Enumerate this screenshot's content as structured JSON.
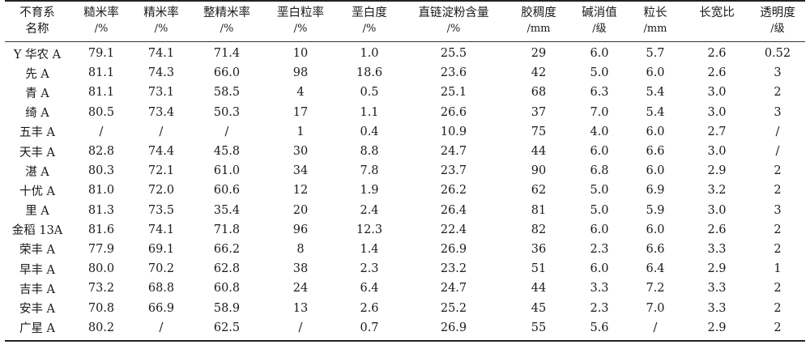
{
  "table": {
    "headers": [
      {
        "line1": "不育系",
        "line2": "名称"
      },
      {
        "line1": "糙米率",
        "line2": "/%"
      },
      {
        "line1": "精米率",
        "line2": "/%"
      },
      {
        "line1": "整精米率",
        "line2": "/%"
      },
      {
        "line1": "垩白粒率",
        "line2": "/%"
      },
      {
        "line1": "垩白度",
        "line2": "/%"
      },
      {
        "line1": "直链淀粉含量",
        "line2": "/%"
      },
      {
        "line1": "胶稠度",
        "line2": "/mm"
      },
      {
        "line1": "碱消值",
        "line2": "/级"
      },
      {
        "line1": "粒长",
        "line2": "/mm"
      },
      {
        "line1": "长宽比",
        "line2": ""
      },
      {
        "line1": "透明度",
        "line2": "/级"
      }
    ],
    "rows": [
      [
        "Y 华农 A",
        "79.1",
        "74.1",
        "71.4",
        "10",
        "1.0",
        "25.5",
        "29",
        "6.0",
        "5.7",
        "2.6",
        "0.52"
      ],
      [
        "先 A",
        "81.1",
        "74.3",
        "66.0",
        "98",
        "18.6",
        "23.6",
        "42",
        "5.0",
        "6.0",
        "2.6",
        "3"
      ],
      [
        "青 A",
        "81.1",
        "73.1",
        "58.5",
        "4",
        "0.5",
        "25.1",
        "68",
        "6.3",
        "5.4",
        "3.0",
        "2"
      ],
      [
        "绮 A",
        "80.5",
        "73.4",
        "50.3",
        "17",
        "1.1",
        "26.6",
        "37",
        "7.0",
        "5.4",
        "3.0",
        "3"
      ],
      [
        "五丰 A",
        "/",
        "/",
        "/",
        "1",
        "0.4",
        "10.9",
        "75",
        "4.0",
        "6.0",
        "2.7",
        "/"
      ],
      [
        "天丰 A",
        "82.8",
        "74.4",
        "45.8",
        "30",
        "8.8",
        "24.7",
        "44",
        "6.0",
        "6.6",
        "3.0",
        "/"
      ],
      [
        "湛 A",
        "80.3",
        "72.1",
        "61.0",
        "34",
        "7.8",
        "23.7",
        "90",
        "6.8",
        "6.0",
        "2.9",
        "2"
      ],
      [
        "十优 A",
        "81.0",
        "72.0",
        "60.6",
        "12",
        "1.9",
        "26.2",
        "62",
        "5.0",
        "6.9",
        "3.2",
        "2"
      ],
      [
        "里 A",
        "81.3",
        "73.5",
        "35.4",
        "20",
        "2.4",
        "26.4",
        "81",
        "5.0",
        "5.9",
        "3.0",
        "3"
      ],
      [
        "金稻 13A",
        "81.6",
        "74.1",
        "71.8",
        "96",
        "12.3",
        "22.4",
        "82",
        "6.0",
        "6.0",
        "2.6",
        "2"
      ],
      [
        "荣丰 A",
        "77.9",
        "69.1",
        "66.2",
        "8",
        "1.4",
        "26.9",
        "36",
        "2.3",
        "6.6",
        "3.3",
        "2"
      ],
      [
        "早丰 A",
        "80.0",
        "70.2",
        "62.8",
        "38",
        "2.3",
        "23.2",
        "51",
        "6.0",
        "6.4",
        "2.9",
        "1"
      ],
      [
        "吉丰 A",
        "73.2",
        "68.8",
        "60.8",
        "24",
        "6.4",
        "24.7",
        "44",
        "3.3",
        "7.2",
        "3.3",
        "2"
      ],
      [
        "安丰 A",
        "70.8",
        "66.9",
        "58.9",
        "13",
        "2.6",
        "25.2",
        "45",
        "2.3",
        "7.0",
        "3.3",
        "2"
      ],
      [
        "广星 A",
        "80.2",
        "/",
        "62.5",
        "/",
        "0.7",
        "26.9",
        "55",
        "5.6",
        "/",
        "2.9",
        "2"
      ]
    ]
  }
}
